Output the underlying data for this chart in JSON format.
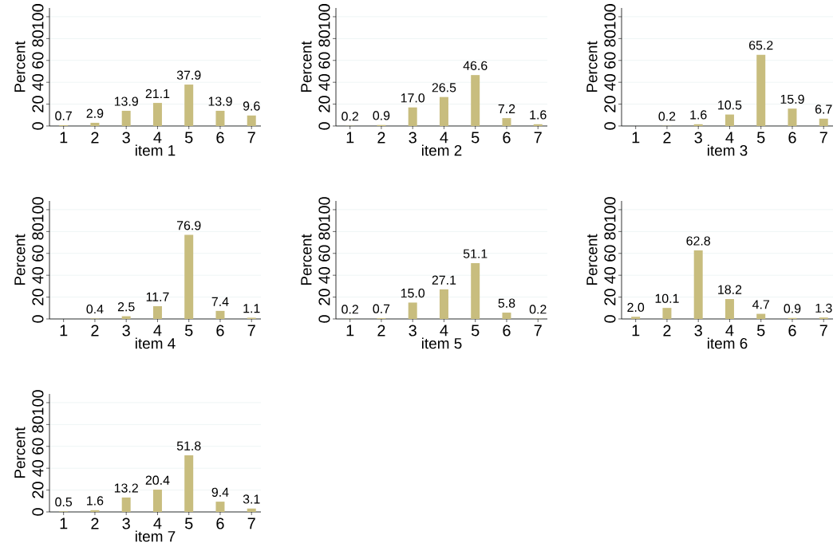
{
  "chart_data": [
    {
      "type": "bar",
      "x": [
        1,
        2,
        3,
        4,
        5,
        6,
        7
      ],
      "values": [
        0.7,
        2.9,
        13.9,
        21.1,
        37.9,
        13.9,
        9.6
      ],
      "value_labels": [
        "0.7",
        "2.9",
        "13.9",
        "21.1",
        "37.9",
        "13.9",
        "9.6"
      ],
      "xlabel": "item 1",
      "ylabel": "Percent",
      "color": "#c8bd7e",
      "xlim": [
        0.55,
        7.3
      ],
      "xticks": [
        1,
        2,
        3,
        4,
        5,
        6,
        7
      ],
      "ylim": [
        0,
        108
      ],
      "yticks": [
        0,
        20,
        40,
        60,
        80,
        100
      ],
      "grid": "y"
    },
    {
      "type": "bar",
      "x": [
        1,
        2,
        3,
        4,
        5,
        6,
        7
      ],
      "values": [
        0.2,
        0.9,
        17.0,
        26.5,
        46.6,
        7.2,
        1.6
      ],
      "value_labels": [
        "0.2",
        "0.9",
        "17.0",
        "26.5",
        "46.6",
        "7.2",
        "1.6"
      ],
      "xlabel": "item 2",
      "ylabel": "Percent",
      "color": "#c8bd7e",
      "xlim": [
        0.55,
        7.3
      ],
      "xticks": [
        1,
        2,
        3,
        4,
        5,
        6,
        7
      ],
      "ylim": [
        0,
        108
      ],
      "yticks": [
        0,
        20,
        40,
        60,
        80,
        100
      ],
      "grid": "y"
    },
    {
      "type": "bar",
      "x": [
        2,
        3,
        4,
        5,
        6,
        7
      ],
      "values": [
        0.2,
        1.6,
        10.5,
        65.2,
        15.9,
        6.7
      ],
      "value_labels": [
        "0.2",
        "1.6",
        "10.5",
        "65.2",
        "15.9",
        "6.7"
      ],
      "xlabel": "item 3",
      "ylabel": "Percent",
      "color": "#c8bd7e",
      "xlim": [
        0.55,
        7.3
      ],
      "xticks": [
        1,
        2,
        3,
        4,
        5,
        6,
        7
      ],
      "ylim": [
        0,
        108
      ],
      "yticks": [
        0,
        20,
        40,
        60,
        80,
        100
      ],
      "grid": "y"
    },
    {
      "type": "bar",
      "x": [
        2,
        3,
        4,
        5,
        6,
        7
      ],
      "values": [
        0.4,
        2.5,
        11.7,
        76.9,
        7.4,
        1.1
      ],
      "value_labels": [
        "0.4",
        "2.5",
        "11.7",
        "76.9",
        "7.4",
        "1.1"
      ],
      "xlabel": "item 4",
      "ylabel": "Percent",
      "color": "#c8bd7e",
      "xlim": [
        0.55,
        7.3
      ],
      "xticks": [
        1,
        2,
        3,
        4,
        5,
        6,
        7
      ],
      "ylim": [
        0,
        108
      ],
      "yticks": [
        0,
        20,
        40,
        60,
        80,
        100
      ],
      "grid": "y"
    },
    {
      "type": "bar",
      "x": [
        1,
        2,
        3,
        4,
        5,
        6,
        7
      ],
      "values": [
        0.2,
        0.7,
        15.0,
        27.1,
        51.1,
        5.8,
        0.2
      ],
      "value_labels": [
        "0.2",
        "0.7",
        "15.0",
        "27.1",
        "51.1",
        "5.8",
        "0.2"
      ],
      "xlabel": "item 5",
      "ylabel": "Percent",
      "color": "#c8bd7e",
      "xlim": [
        0.55,
        7.3
      ],
      "xticks": [
        1,
        2,
        3,
        4,
        5,
        6,
        7
      ],
      "ylim": [
        0,
        108
      ],
      "yticks": [
        0,
        20,
        40,
        60,
        80,
        100
      ],
      "grid": "y"
    },
    {
      "type": "bar",
      "x": [
        1,
        2,
        3,
        4,
        5,
        6,
        7
      ],
      "values": [
        2.0,
        10.1,
        62.8,
        18.2,
        4.7,
        0.9,
        1.3
      ],
      "value_labels": [
        "2.0",
        "10.1",
        "62.8",
        "18.2",
        "4.7",
        "0.9",
        "1.3"
      ],
      "xlabel": "item 6",
      "ylabel": "Percent",
      "color": "#c8bd7e",
      "xlim": [
        0.55,
        7.3
      ],
      "xticks": [
        1,
        2,
        3,
        4,
        5,
        6,
        7
      ],
      "ylim": [
        0,
        108
      ],
      "yticks": [
        0,
        20,
        40,
        60,
        80,
        100
      ],
      "grid": "y"
    },
    {
      "type": "bar",
      "x": [
        1,
        2,
        3,
        4,
        5,
        6,
        7
      ],
      "values": [
        0.5,
        1.6,
        13.2,
        20.4,
        51.8,
        9.4,
        3.1
      ],
      "value_labels": [
        "0.5",
        "1.6",
        "13.2",
        "20.4",
        "51.8",
        "9.4",
        "3.1"
      ],
      "xlabel": "item 7",
      "ylabel": "Percent",
      "color": "#c8bd7e",
      "xlim": [
        0.55,
        7.3
      ],
      "xticks": [
        1,
        2,
        3,
        4,
        5,
        6,
        7
      ],
      "ylim": [
        0,
        108
      ],
      "yticks": [
        0,
        20,
        40,
        60,
        80,
        100
      ],
      "grid": "y"
    }
  ]
}
